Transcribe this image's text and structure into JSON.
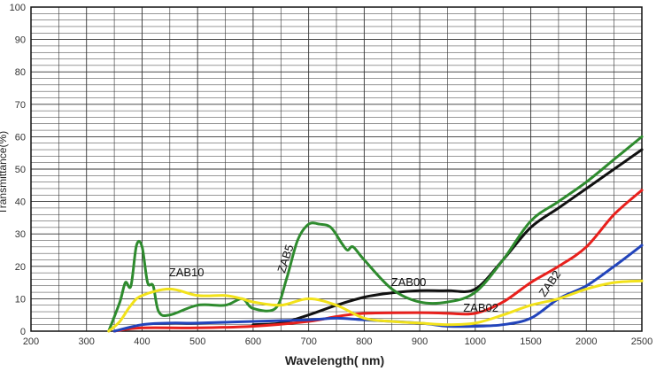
{
  "chart_data": {
    "type": "line",
    "xlabel": "Wavelength( nm)",
    "ylabel": "Transmittance(%)",
    "ylim": [
      0,
      100
    ],
    "y_ticks": [
      0,
      10,
      20,
      30,
      40,
      50,
      60,
      70,
      80,
      90,
      100
    ],
    "x_ticks": [
      "200",
      "300",
      "400",
      "500",
      "600",
      "700",
      "800",
      "900",
      "1000",
      "1500",
      "2000",
      "2500"
    ],
    "x_scale_note": "linear 200-1000 nm, compressed 1000-2500 nm",
    "grid": true,
    "legend": "none (direct labels)",
    "series": [
      {
        "name": "ZAB00",
        "color": "#111111",
        "points": [
          [
            600,
            2
          ],
          [
            650,
            2.5
          ],
          [
            700,
            5
          ],
          [
            750,
            8
          ],
          [
            800,
            10.5
          ],
          [
            850,
            11.8
          ],
          [
            900,
            12.5
          ],
          [
            950,
            12.5
          ],
          [
            1000,
            13
          ],
          [
            1250,
            22
          ],
          [
            1500,
            32
          ],
          [
            1750,
            38
          ],
          [
            2000,
            44
          ],
          [
            2250,
            50
          ],
          [
            2500,
            56
          ]
        ]
      },
      {
        "name": "ZAB02",
        "color": "#e8201c",
        "points": [
          [
            350,
            0
          ],
          [
            400,
            1
          ],
          [
            500,
            1
          ],
          [
            600,
            1.5
          ],
          [
            700,
            3
          ],
          [
            750,
            4.5
          ],
          [
            800,
            5.5
          ],
          [
            900,
            5.7
          ],
          [
            950,
            5.5
          ],
          [
            1000,
            5.5
          ],
          [
            1250,
            9
          ],
          [
            1500,
            15
          ],
          [
            1750,
            20
          ],
          [
            2000,
            26
          ],
          [
            2250,
            36
          ],
          [
            2500,
            43.5
          ]
        ]
      },
      {
        "name": "ZAB2",
        "color": "#2244bb",
        "points": [
          [
            350,
            0
          ],
          [
            400,
            2
          ],
          [
            450,
            2.5
          ],
          [
            500,
            2.5
          ],
          [
            600,
            3
          ],
          [
            700,
            3.5
          ],
          [
            750,
            4
          ],
          [
            800,
            3.5
          ],
          [
            900,
            2.5
          ],
          [
            950,
            1.5
          ],
          [
            1000,
            1.5
          ],
          [
            1250,
            2
          ],
          [
            1500,
            4
          ],
          [
            1750,
            10
          ],
          [
            2000,
            14
          ],
          [
            2250,
            20
          ],
          [
            2500,
            26.5
          ]
        ]
      },
      {
        "name": "ZAB5",
        "color": "#2e8b2e",
        "points": [
          [
            340,
            0
          ],
          [
            360,
            9
          ],
          [
            370,
            15
          ],
          [
            380,
            14
          ],
          [
            390,
            26.5
          ],
          [
            400,
            26
          ],
          [
            410,
            15
          ],
          [
            420,
            14
          ],
          [
            430,
            6
          ],
          [
            450,
            5
          ],
          [
            500,
            8
          ],
          [
            550,
            8
          ],
          [
            580,
            10
          ],
          [
            600,
            7
          ],
          [
            640,
            7
          ],
          [
            660,
            16
          ],
          [
            680,
            28
          ],
          [
            700,
            33
          ],
          [
            720,
            33
          ],
          [
            740,
            32
          ],
          [
            760,
            27
          ],
          [
            770,
            25
          ],
          [
            780,
            26
          ],
          [
            800,
            22
          ],
          [
            850,
            13
          ],
          [
            900,
            9
          ],
          [
            950,
            9
          ],
          [
            1000,
            12
          ],
          [
            1250,
            22
          ],
          [
            1500,
            34
          ],
          [
            1750,
            40
          ],
          [
            2000,
            46
          ],
          [
            2250,
            53
          ],
          [
            2500,
            60
          ]
        ]
      },
      {
        "name": "ZAB10",
        "color": "#f2e21a",
        "points": [
          [
            340,
            0
          ],
          [
            360,
            3
          ],
          [
            380,
            8
          ],
          [
            400,
            11
          ],
          [
            450,
            13
          ],
          [
            500,
            11
          ],
          [
            550,
            11
          ],
          [
            580,
            10
          ],
          [
            600,
            9
          ],
          [
            650,
            8
          ],
          [
            700,
            10
          ],
          [
            750,
            8
          ],
          [
            800,
            4
          ],
          [
            850,
            3
          ],
          [
            900,
            2.5
          ],
          [
            950,
            2
          ],
          [
            1000,
            2.5
          ],
          [
            1250,
            5
          ],
          [
            1500,
            8
          ],
          [
            1750,
            10
          ],
          [
            2000,
            13
          ],
          [
            2250,
            15
          ],
          [
            2500,
            15.5
          ]
        ]
      }
    ],
    "annotations": [
      {
        "text": "ZAB10",
        "x": 480,
        "y": 17
      },
      {
        "text": "ZAB5",
        "x": 665,
        "y": 22
      },
      {
        "text": "ZAB00",
        "x": 880,
        "y": 14
      },
      {
        "text": "ZAB02",
        "x": 1050,
        "y": 6
      },
      {
        "text": "ZAB2",
        "x": 1700,
        "y": 14
      }
    ]
  }
}
